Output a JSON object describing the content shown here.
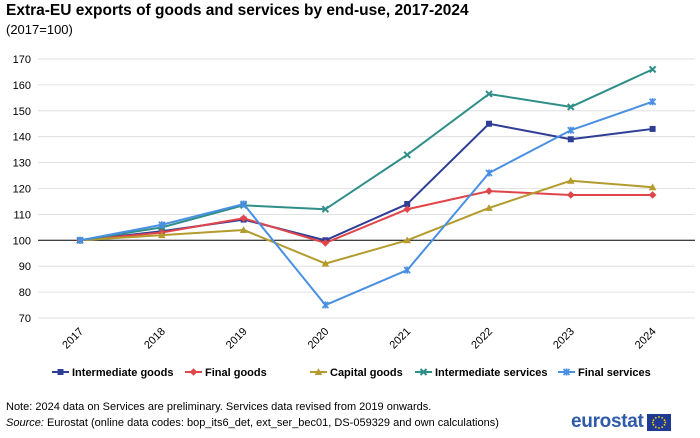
{
  "header": {
    "title": "Extra-EU exports of goods and services by end-use, 2017-2024",
    "subtitle": "(2017=100)"
  },
  "chart_data": {
    "type": "line",
    "title": "Extra-EU exports of goods and services by end-use, 2017-2024",
    "subtitle": "(2017=100)",
    "xlabel": "",
    "ylabel": "",
    "categories": [
      "2017",
      "2018",
      "2019",
      "2020",
      "2021",
      "2022",
      "2023",
      "2024"
    ],
    "yticks": [
      70,
      80,
      90,
      100,
      110,
      120,
      130,
      140,
      150,
      160,
      170
    ],
    "ylim": [
      70,
      170
    ],
    "grid": "horizontal",
    "legend_position": "bottom",
    "series": [
      {
        "name": "Intermediate goods",
        "color": "#2e3d96",
        "marker": "square",
        "values": [
          100,
          103.5,
          108,
          100,
          114,
          145,
          139,
          143
        ]
      },
      {
        "name": "Final goods",
        "color": "#e0454a",
        "marker": "diamond",
        "values": [
          100,
          103,
          108.5,
          99,
          112,
          119,
          117.5,
          117.5
        ]
      },
      {
        "name": "Capital goods",
        "color": "#b39b2e",
        "marker": "triangle",
        "values": [
          100,
          102,
          104,
          91,
          100,
          112.5,
          123,
          120.5
        ]
      },
      {
        "name": "Intermediate services",
        "color": "#2f8f88",
        "marker": "cross",
        "values": [
          100,
          105,
          113.5,
          112,
          133,
          156.5,
          151.5,
          166
        ]
      },
      {
        "name": "Final services",
        "color": "#4a90e2",
        "marker": "star",
        "values": [
          100,
          106,
          114,
          75,
          88.5,
          126,
          142.5,
          153.5
        ]
      }
    ]
  },
  "footer": {
    "note": "Note: 2024 data on Services are preliminary. Services data revised from 2019 onwards.",
    "source_label": "Source:",
    "source_text": " Eurostat (online data codes: bop_its6_det, ext_ser_bec01, DS-059329 and own calculations)",
    "logo_text": "eurostat"
  }
}
